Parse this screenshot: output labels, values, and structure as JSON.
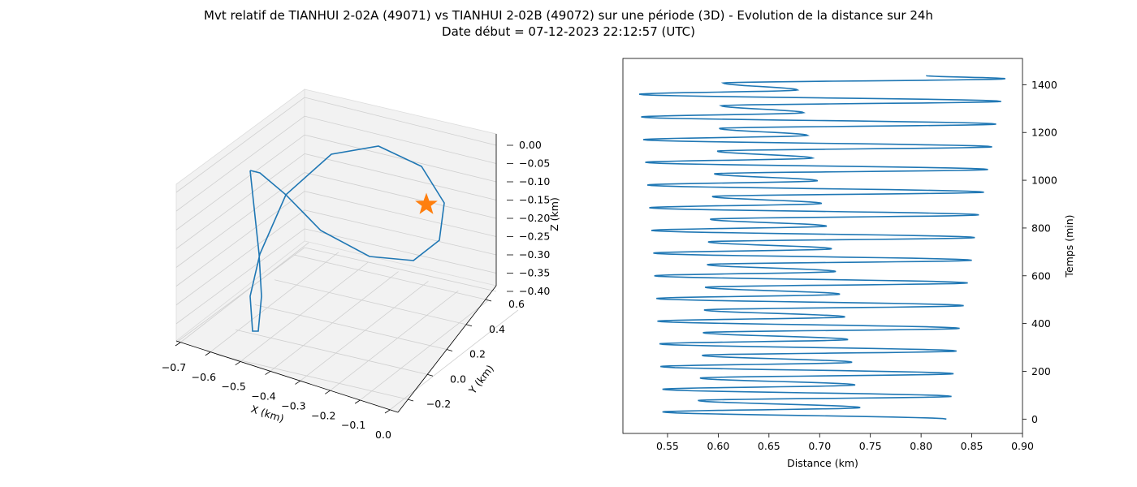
{
  "figure": {
    "title_line1": "Mvt relatif de TIANHUI 2-02A (49071) vs TIANHUI 2-02B (49072) sur une période (3D) - Evolution de la distance sur 24h",
    "title_line2": "Date début = 07-12-2023 22:12:57 (UTC)"
  },
  "colors": {
    "line": "#1f77b4",
    "marker": "#ff7f0e",
    "pane": "#f2f2f2",
    "grid": "#cfcfcf"
  },
  "chart_data": [
    {
      "type": "line3d",
      "xlabel": "X (km)",
      "ylabel": "Y (km)",
      "zlabel": "Z (km)",
      "xlim": [
        -0.75,
        0.05
      ],
      "ylim": [
        -0.3,
        0.7
      ],
      "zlim": [
        -0.4,
        0.0
      ],
      "x_ticks": [
        "−0.7",
        "−0.6",
        "−0.5",
        "−0.4",
        "−0.3",
        "−0.2",
        "−0.1",
        "0.0"
      ],
      "y_ticks": [
        "−0.2",
        "0.0",
        "0.2",
        "0.4",
        "0.6"
      ],
      "z_ticks": [
        "0.00",
        "−0.05",
        "−0.10",
        "−0.15",
        "−0.20",
        "−0.25",
        "−0.30",
        "−0.35",
        "−0.40"
      ],
      "marker": {
        "x": 0.0,
        "y": 0.0,
        "z": 0.0,
        "shape": "star"
      },
      "grid": true
    },
    {
      "type": "line",
      "xlabel": "Distance (km)",
      "ylabel": "Temps (min)",
      "xlim": [
        0.506,
        0.9
      ],
      "ylim": [
        -60,
        1510
      ],
      "x_ticks": [
        0.55,
        0.6,
        0.65,
        0.7,
        0.75,
        0.8,
        0.85,
        0.9
      ],
      "y_ticks": [
        0,
        200,
        400,
        600,
        800,
        1000,
        1200,
        1400
      ],
      "y_axis_side": "right",
      "grid": false,
      "series": [
        {
          "turning_points": [
            [
              0.825,
              0
            ],
            [
              0.545,
              30
            ],
            [
              0.74,
              48
            ],
            [
              0.58,
              78
            ],
            [
              0.83,
              95
            ],
            [
              0.545,
              125
            ],
            [
              0.735,
              143
            ],
            [
              0.582,
              172
            ],
            [
              0.832,
              190
            ],
            [
              0.543,
              220
            ],
            [
              0.732,
              238
            ],
            [
              0.584,
              267
            ],
            [
              0.835,
              285
            ],
            [
              0.542,
              315
            ],
            [
              0.728,
              333
            ],
            [
              0.585,
              362
            ],
            [
              0.838,
              380
            ],
            [
              0.54,
              410
            ],
            [
              0.725,
              428
            ],
            [
              0.586,
              457
            ],
            [
              0.842,
              475
            ],
            [
              0.539,
              505
            ],
            [
              0.72,
              523
            ],
            [
              0.587,
              552
            ],
            [
              0.846,
              570
            ],
            [
              0.537,
              600
            ],
            [
              0.716,
              618
            ],
            [
              0.589,
              647
            ],
            [
              0.85,
              665
            ],
            [
              0.536,
              695
            ],
            [
              0.712,
              713
            ],
            [
              0.59,
              742
            ],
            [
              0.853,
              760
            ],
            [
              0.534,
              790
            ],
            [
              0.707,
              808
            ],
            [
              0.592,
              837
            ],
            [
              0.857,
              855
            ],
            [
              0.532,
              885
            ],
            [
              0.702,
              903
            ],
            [
              0.594,
              932
            ],
            [
              0.862,
              950
            ],
            [
              0.53,
              980
            ],
            [
              0.698,
              998
            ],
            [
              0.596,
              1027
            ],
            [
              0.866,
              1045
            ],
            [
              0.528,
              1075
            ],
            [
              0.693,
              1093
            ],
            [
              0.599,
              1122
            ],
            [
              0.87,
              1140
            ],
            [
              0.526,
              1170
            ],
            [
              0.688,
              1188
            ],
            [
              0.601,
              1217
            ],
            [
              0.874,
              1235
            ],
            [
              0.524,
              1265
            ],
            [
              0.684,
              1283
            ],
            [
              0.603,
              1312
            ],
            [
              0.879,
              1330
            ],
            [
              0.522,
              1360
            ],
            [
              0.678,
              1378
            ],
            [
              0.605,
              1407
            ],
            [
              0.883,
              1425
            ],
            [
              0.805,
              1438
            ]
          ]
        }
      ]
    }
  ]
}
